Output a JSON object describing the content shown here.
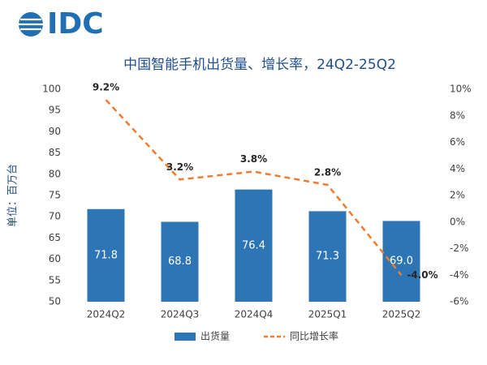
{
  "logo": {
    "text": "IDC"
  },
  "chart_data": {
    "type": "bar-line",
    "title": "中国智能手机出货量、增长率，24Q2-25Q2",
    "ylabel": "单位：百万台",
    "categories": [
      "2024Q2",
      "2024Q3",
      "2024Q4",
      "2025Q1",
      "2025Q2"
    ],
    "series": [
      {
        "name": "出货量",
        "type": "bar",
        "color": "#2e75b6",
        "values": [
          71.8,
          68.8,
          76.4,
          71.3,
          69.0
        ],
        "value_labels": [
          "71.8",
          "68.8",
          "76.4",
          "71.3",
          "69.0"
        ]
      },
      {
        "name": "同比增长率",
        "type": "line",
        "axis": "y2",
        "color": "#ed7d31",
        "values": [
          9.2,
          3.2,
          3.8,
          2.8,
          -4.0
        ],
        "value_labels": [
          "9.2%",
          "3.2%",
          "3.8%",
          "2.8%",
          "-4.0%"
        ]
      }
    ],
    "ylim": [
      50,
      100
    ],
    "yticks": [
      50,
      55,
      60,
      65,
      70,
      75,
      80,
      85,
      90,
      95,
      100
    ],
    "y2lim": [
      -6,
      10
    ],
    "y2ticks": [
      {
        "value": -6,
        "label": "-6%"
      },
      {
        "value": -4,
        "label": "-4%"
      },
      {
        "value": -2,
        "label": "-2%"
      },
      {
        "value": 0,
        "label": "0%"
      },
      {
        "value": 2,
        "label": "2%"
      },
      {
        "value": 4,
        "label": "4%"
      },
      {
        "value": 6,
        "label": "6%"
      },
      {
        "value": 8,
        "label": "8%"
      },
      {
        "value": 10,
        "label": "10%"
      }
    ],
    "grid": false,
    "legend": "bottom"
  }
}
